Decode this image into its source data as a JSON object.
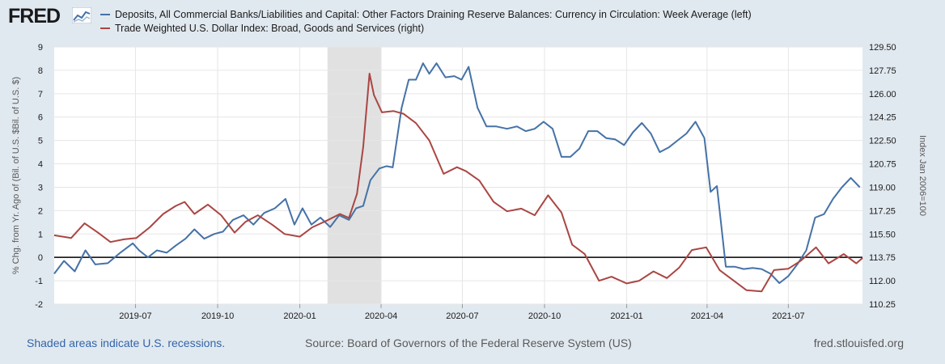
{
  "header": {
    "logo_text": "FRED",
    "logo_icon": "chart-line-icon"
  },
  "footer": {
    "recession_note": "Shaded areas indicate U.S. recessions.",
    "source": "Source: Board of Governors of the Federal Reserve System (US)",
    "site": "fred.stlouisfed.org"
  },
  "colors": {
    "background": "#e1e9f0",
    "plot_background": "#ffffff",
    "series_left": "#4572a7",
    "series_right": "#aa4643",
    "recession_shade": "#e1e1e1",
    "gridline": "#e6e6e6",
    "zero_line": "#000000"
  },
  "chart_data": {
    "type": "line",
    "title": "",
    "legend_placement": "top",
    "grid": true,
    "x_axis": {
      "ticks": [
        "2019-07",
        "2019-10",
        "2020-01",
        "2020-04",
        "2020-07",
        "2020-10",
        "2021-01",
        "2021-04",
        "2021-07"
      ],
      "range": [
        "2019-04-01",
        "2021-09-22"
      ]
    },
    "y_left": {
      "label": "% Chg. from Yr. Ago of (Bil. of U.S. $Bil. of U.S. $)",
      "range": [
        -2,
        9
      ],
      "ticks": [
        "-2",
        "-1",
        "0",
        "1",
        "2",
        "3",
        "4",
        "5",
        "6",
        "7",
        "8",
        "9"
      ]
    },
    "y_right": {
      "label": "Index Jan 2006=100",
      "range": [
        110.25,
        129.5
      ],
      "ticks": [
        "110.25",
        "112.00",
        "113.75",
        "115.50",
        "117.25",
        "119.00",
        "120.75",
        "122.50",
        "124.25",
        "126.00",
        "127.75",
        "129.50"
      ]
    },
    "recessions": [
      {
        "start": "2020-02-01",
        "end": "2020-04-01"
      }
    ],
    "series": [
      {
        "name": "Deposits, All Commercial Banks/Liabilities and Capital: Other Factors Draining Reserve Balances: Currency in Circulation: Week Average (left)",
        "axis": "left",
        "x": [
          "2019-04-01",
          "2019-04-12",
          "2019-04-24",
          "2019-05-06",
          "2019-05-17",
          "2019-05-31",
          "2019-06-14",
          "2019-06-28",
          "2019-07-05",
          "2019-07-15",
          "2019-07-25",
          "2019-08-05",
          "2019-08-15",
          "2019-08-26",
          "2019-09-05",
          "2019-09-16",
          "2019-09-27",
          "2019-10-07",
          "2019-10-18",
          "2019-10-30",
          "2019-11-10",
          "2019-11-22",
          "2019-12-04",
          "2019-12-10",
          "2019-12-16",
          "2019-12-26",
          "2020-01-04",
          "2020-01-14",
          "2020-01-24",
          "2020-02-04",
          "2020-02-14",
          "2020-02-25",
          "2020-03-04",
          "2020-03-12",
          "2020-03-20",
          "2020-03-30",
          "2020-04-07",
          "2020-04-14",
          "2020-04-24",
          "2020-05-02",
          "2020-05-10",
          "2020-05-18",
          "2020-05-25",
          "2020-06-02",
          "2020-06-12",
          "2020-06-22",
          "2020-06-30",
          "2020-07-08",
          "2020-07-18",
          "2020-07-28",
          "2020-08-08",
          "2020-08-20",
          "2020-08-31",
          "2020-09-10",
          "2020-09-20",
          "2020-09-30",
          "2020-10-10",
          "2020-10-20",
          "2020-10-30",
          "2020-11-09",
          "2020-11-19",
          "2020-11-29",
          "2020-12-09",
          "2020-12-19",
          "2020-12-29",
          "2021-01-08",
          "2021-01-18",
          "2021-01-28",
          "2021-02-07",
          "2021-02-17",
          "2021-02-27",
          "2021-03-09",
          "2021-03-19",
          "2021-03-29",
          "2021-04-05",
          "2021-04-12",
          "2021-04-22",
          "2021-05-02",
          "2021-05-12",
          "2021-05-22",
          "2021-06-01",
          "2021-06-11",
          "2021-06-21",
          "2021-07-01",
          "2021-07-11",
          "2021-07-21",
          "2021-07-31",
          "2021-08-10",
          "2021-08-20",
          "2021-08-30",
          "2021-09-09",
          "2021-09-19"
        ],
        "y": [
          -0.7,
          -0.15,
          -0.6,
          0.3,
          -0.3,
          -0.25,
          0.2,
          0.6,
          0.3,
          0.0,
          0.3,
          0.2,
          0.5,
          0.8,
          1.2,
          0.8,
          1.0,
          1.1,
          1.6,
          1.8,
          1.4,
          1.9,
          2.1,
          2.3,
          2.5,
          1.4,
          2.1,
          1.4,
          1.7,
          1.3,
          1.8,
          1.6,
          2.1,
          2.2,
          3.3,
          3.8,
          3.9,
          3.85,
          6.4,
          7.6,
          7.6,
          8.3,
          7.85,
          8.3,
          7.7,
          7.75,
          7.6,
          8.15,
          6.4,
          5.6,
          5.6,
          5.5,
          5.6,
          5.4,
          5.5,
          5.8,
          5.5,
          4.3,
          4.3,
          4.65,
          5.4,
          5.4,
          5.1,
          5.05,
          4.8,
          5.35,
          5.75,
          5.3,
          4.5,
          4.7,
          5.0,
          5.3,
          5.8,
          5.1,
          2.8,
          3.05,
          -0.4,
          -0.4,
          -0.5,
          -0.45,
          -0.5,
          -0.7,
          -1.1,
          -0.8,
          -0.3,
          0.3,
          1.7,
          1.85,
          2.5,
          3.0,
          3.4,
          3.0
        ]
      },
      {
        "name": "Trade Weighted U.S. Dollar Index: Broad, Goods and Services (right)",
        "axis": "right",
        "x": [
          "2019-04-01",
          "2019-04-20",
          "2019-05-05",
          "2019-05-20",
          "2019-06-03",
          "2019-06-18",
          "2019-07-02",
          "2019-07-17",
          "2019-08-01",
          "2019-08-15",
          "2019-08-25",
          "2019-09-05",
          "2019-09-20",
          "2019-10-05",
          "2019-10-20",
          "2019-11-01",
          "2019-11-15",
          "2019-12-01",
          "2019-12-15",
          "2020-01-01",
          "2020-01-15",
          "2020-01-31",
          "2020-02-15",
          "2020-02-25",
          "2020-03-05",
          "2020-03-12",
          "2020-03-19",
          "2020-03-24",
          "2020-04-02",
          "2020-04-15",
          "2020-04-26",
          "2020-05-10",
          "2020-05-25",
          "2020-06-10",
          "2020-06-25",
          "2020-07-05",
          "2020-07-20",
          "2020-08-05",
          "2020-08-20",
          "2020-09-05",
          "2020-09-20",
          "2020-10-05",
          "2020-10-20",
          "2020-11-01",
          "2020-11-15",
          "2020-12-01",
          "2020-12-15",
          "2021-01-01",
          "2021-01-15",
          "2021-01-31",
          "2021-02-15",
          "2021-03-01",
          "2021-03-15",
          "2021-03-31",
          "2021-04-15",
          "2021-05-01",
          "2021-05-15",
          "2021-06-01",
          "2021-06-15",
          "2021-07-01",
          "2021-07-15",
          "2021-08-01",
          "2021-08-15",
          "2021-09-01",
          "2021-09-15",
          "2021-09-22"
        ],
        "y": [
          115.4,
          115.2,
          116.3,
          115.6,
          114.9,
          115.1,
          115.2,
          116.0,
          117.0,
          117.6,
          117.9,
          117.0,
          117.7,
          116.9,
          115.6,
          116.4,
          116.9,
          116.2,
          115.5,
          115.3,
          116.0,
          116.5,
          117.0,
          116.7,
          118.5,
          122.0,
          127.5,
          125.9,
          124.6,
          124.7,
          124.5,
          123.8,
          122.5,
          120.0,
          120.5,
          120.2,
          119.5,
          117.9,
          117.2,
          117.4,
          116.9,
          118.4,
          117.1,
          114.7,
          114.0,
          112.0,
          112.3,
          111.8,
          112.0,
          112.7,
          112.2,
          113.0,
          114.3,
          114.5,
          112.8,
          112.0,
          111.3,
          111.2,
          112.8,
          112.9,
          113.5,
          114.5,
          113.3,
          114.0,
          113.3,
          113.7
        ]
      }
    ]
  }
}
